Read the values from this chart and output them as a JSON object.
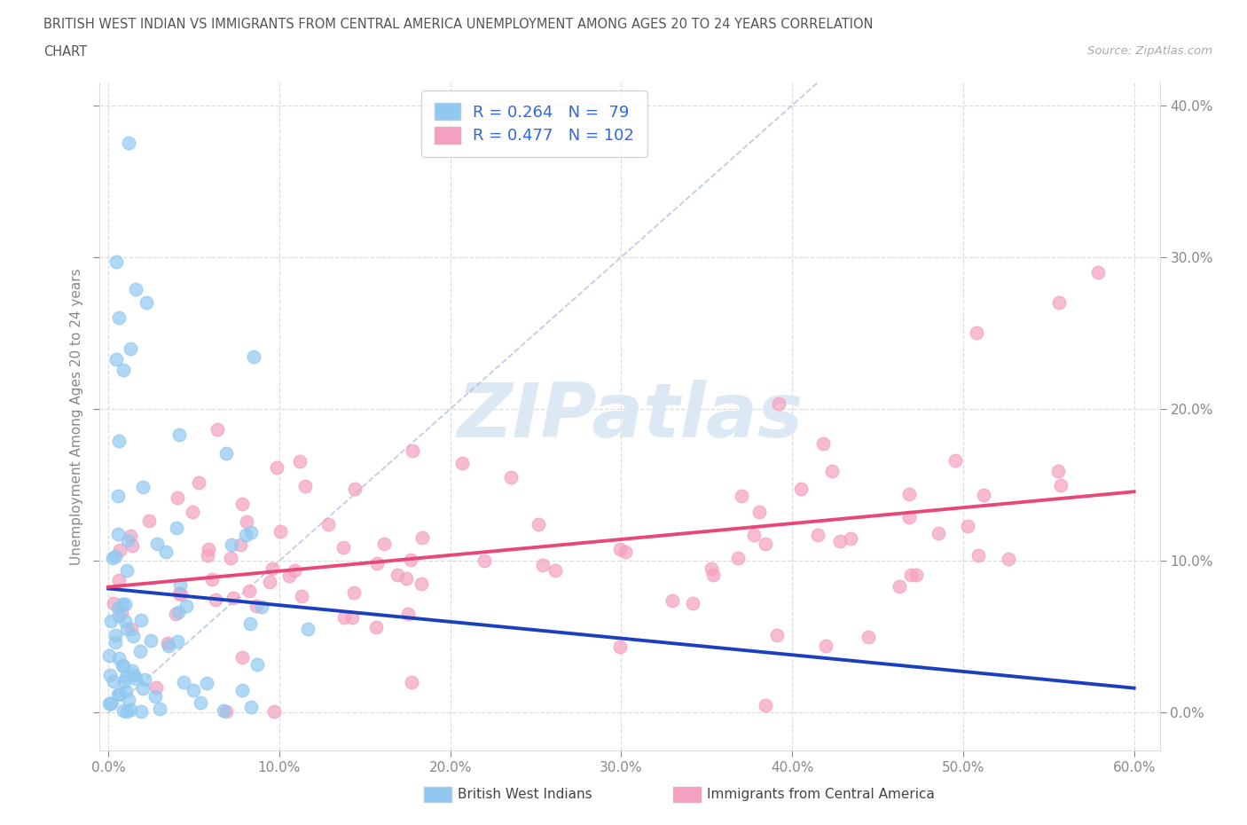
{
  "title_line1": "BRITISH WEST INDIAN VS IMMIGRANTS FROM CENTRAL AMERICA UNEMPLOYMENT AMONG AGES 20 TO 24 YEARS CORRELATION",
  "title_line2": "CHART",
  "source_text": "Source: ZipAtlas.com",
  "ylabel": "Unemployment Among Ages 20 to 24 years",
  "legend_label1": "British West Indians",
  "legend_label2": "Immigrants from Central America",
  "R1": "0.264",
  "N1": "79",
  "R2": "0.477",
  "N2": "102",
  "color_blue": "#90C8F0",
  "color_pink": "#F4A0C0",
  "color_blue_line": "#1A40C0",
  "color_pink_line": "#E84878",
  "color_diag": "#AABBDD",
  "color_grid": "#DDDDDD",
  "color_tick": "#888888",
  "color_title": "#555555",
  "color_source": "#AAAAAA",
  "color_legend_text": "#3366DD",
  "color_watermark": "#DCE8F4",
  "watermark_text": "ZIPatlas",
  "xlim_min": -0.005,
  "xlim_max": 0.615,
  "ylim_min": -0.025,
  "ylim_max": 0.415,
  "xtick_vals": [
    0.0,
    0.1,
    0.2,
    0.3,
    0.4,
    0.5,
    0.6
  ],
  "ytick_vals": [
    0.0,
    0.1,
    0.2,
    0.3,
    0.4
  ]
}
